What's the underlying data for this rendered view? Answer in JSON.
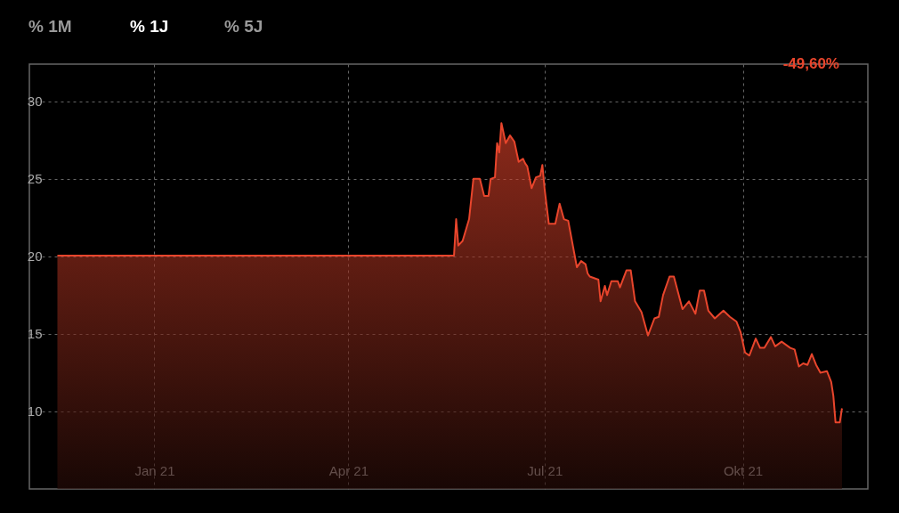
{
  "chart_data": {
    "type": "area",
    "annotations": [
      "% 1M",
      "% 1J",
      "% 5J",
      "-49,60%"
    ],
    "x": [
      "2020-11-17",
      "2021-05-20",
      "2021-05-21",
      "2021-05-22",
      "2021-05-24",
      "2021-05-27",
      "2021-05-29",
      "2021-06-01",
      "2021-06-03",
      "2021-06-05",
      "2021-06-06",
      "2021-06-08",
      "2021-06-09",
      "2021-06-10",
      "2021-06-11",
      "2021-06-13",
      "2021-06-15",
      "2021-06-17",
      "2021-06-19",
      "2021-06-21",
      "2021-06-22",
      "2021-06-23",
      "2021-06-25",
      "2021-06-27",
      "2021-06-29",
      "2021-06-30",
      "2021-07-01",
      "2021-07-03",
      "2021-07-06",
      "2021-07-08",
      "2021-07-10",
      "2021-07-12",
      "2021-07-16",
      "2021-07-18",
      "2021-07-20",
      "2021-07-21",
      "2021-07-22",
      "2021-07-26",
      "2021-07-27",
      "2021-07-29",
      "2021-07-30",
      "2021-08-01",
      "2021-08-04",
      "2021-08-05",
      "2021-08-08",
      "2021-08-10",
      "2021-08-12",
      "2021-08-15",
      "2021-08-18",
      "2021-08-21",
      "2021-08-23",
      "2021-08-25",
      "2021-08-28",
      "2021-08-30",
      "2021-09-03",
      "2021-09-06",
      "2021-09-09",
      "2021-09-11",
      "2021-09-13",
      "2021-09-15",
      "2021-09-18",
      "2021-09-22",
      "2021-09-25",
      "2021-09-28",
      "2021-09-30",
      "2021-10-02",
      "2021-10-04",
      "2021-10-07",
      "2021-10-09",
      "2021-10-11",
      "2021-10-14",
      "2021-10-16",
      "2021-10-19",
      "2021-10-23",
      "2021-10-25",
      "2021-10-27",
      "2021-10-29",
      "2021-10-31",
      "2021-11-02",
      "2021-11-04",
      "2021-11-06",
      "2021-11-09",
      "2021-11-11",
      "2021-11-12",
      "2021-11-13",
      "2021-11-15",
      "2021-11-16"
    ],
    "series": [
      {
        "color": "#e8452c",
        "values": [
          20.05,
          20.05,
          22.4,
          20.7,
          21.0,
          22.4,
          25.0,
          25.0,
          23.9,
          23.9,
          25.0,
          25.1,
          27.3,
          26.7,
          28.6,
          27.3,
          27.8,
          27.4,
          26.1,
          26.3,
          26.0,
          25.8,
          24.4,
          25.1,
          25.2,
          25.9,
          24.4,
          22.1,
          22.1,
          23.4,
          22.4,
          22.3,
          19.3,
          19.7,
          19.5,
          18.9,
          18.7,
          18.5,
          17.1,
          18.1,
          17.5,
          18.4,
          18.4,
          18.0,
          19.1,
          19.1,
          17.1,
          16.4,
          14.9,
          16.0,
          16.1,
          17.5,
          18.7,
          18.7,
          16.6,
          17.1,
          16.3,
          17.8,
          17.8,
          16.5,
          16.0,
          16.5,
          16.1,
          15.8,
          15.1,
          13.8,
          13.6,
          14.7,
          14.1,
          14.1,
          14.8,
          14.2,
          14.5,
          14.1,
          14.0,
          12.9,
          13.1,
          13.0,
          13.7,
          13.0,
          12.5,
          12.6,
          11.9,
          11.0,
          9.3,
          9.3,
          10.2
        ]
      }
    ],
    "xlim": [
      "2020-11-04",
      "2021-11-28"
    ],
    "xticks": [
      {
        "value": "2021-01-01",
        "label": "Jan 21"
      },
      {
        "value": "2021-04-01",
        "label": "Apr 21"
      },
      {
        "value": "2021-07-01",
        "label": "Jul 21"
      },
      {
        "value": "2021-10-01",
        "label": "Okt 21"
      }
    ],
    "ylim": [
      5,
      32.4
    ],
    "yticks": [
      10,
      15,
      20,
      25,
      30
    ],
    "grid": true,
    "line_style": "solid"
  }
}
